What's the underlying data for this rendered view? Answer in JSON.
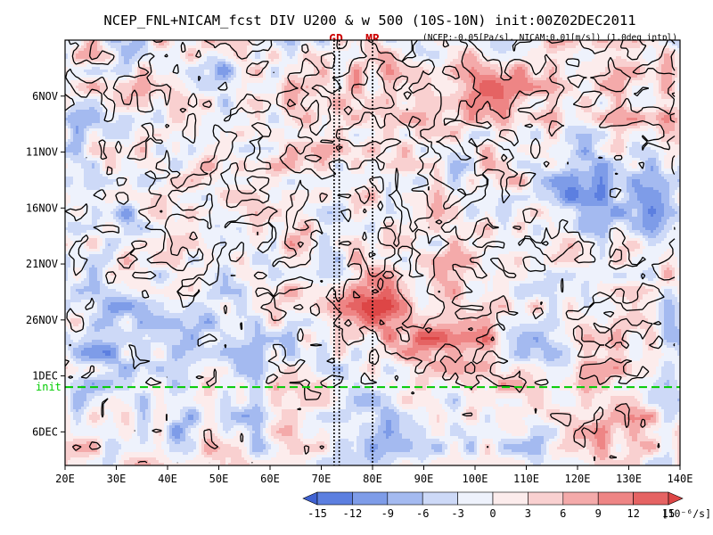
{
  "header": {
    "title": "NCEP_FNL+NICAM_fcst DIV U200 & w 500 (10S-10N) init:00Z02DEC2011",
    "subtitle": "(NCEP:-0.05[Pa/s], NICAM:0.01[m/s]) (1.0deg intpl)",
    "marker_gd": "GD",
    "marker_mr": "MR"
  },
  "colors": {
    "positive": "#e35a5a",
    "negative": "#4a72d9",
    "init_line": "#00cc00",
    "contour": "#000000",
    "marker_text": "#cc0000"
  },
  "chart_data": {
    "type": "heatmap",
    "title": "NCEP_FNL+NICAM_fcst DIV U200 & w 500 (10S-10N) init:00Z02DEC2011",
    "x_axis": {
      "range": [
        20,
        140
      ],
      "ticks": [
        20,
        30,
        40,
        50,
        60,
        70,
        80,
        90,
        100,
        110,
        120,
        130,
        140
      ],
      "tick_labels": [
        "20E",
        "30E",
        "40E",
        "50E",
        "60E",
        "70E",
        "80E",
        "90E",
        "100E",
        "110E",
        "120E",
        "130E",
        "140E"
      ]
    },
    "y_axis": {
      "start": "2011-11-01",
      "end": "2011-12-09",
      "ticks": [
        "2011-11-06",
        "2011-11-11",
        "2011-11-16",
        "2011-11-21",
        "2011-11-26",
        "2011-12-01"
      ],
      "tick_labels": [
        "6NOV",
        "11NOV",
        "16NOV",
        "21NOV",
        "26NOV",
        "1DEC",
        "6DEC"
      ],
      "extra_tick": "2011-12-06"
    },
    "init": {
      "label": "init",
      "date": "2011-12-02"
    },
    "markers": [
      {
        "label": "GD",
        "lon": [
          72.5,
          73.5
        ]
      },
      {
        "label": "MR",
        "lon": [
          80
        ]
      }
    ],
    "colorbar": {
      "levels": [
        -15,
        -12,
        -9,
        -6,
        -3,
        0,
        3,
        6,
        9,
        12,
        15
      ],
      "labels": [
        "-15",
        "-12",
        "-9",
        "-6",
        "-3",
        "0",
        "3",
        "6",
        "9",
        "12",
        "15"
      ],
      "unit": "[10⁻⁶/s]",
      "colors": [
        "#3f62d2",
        "#5c7fe0",
        "#7e9ce8",
        "#a4baf0",
        "#cdd9f7",
        "#eef2fc",
        "#fcecec",
        "#f9d0d0",
        "#f4aaaa",
        "#ee8585",
        "#e56363",
        "#dd4646"
      ]
    },
    "features": [
      {
        "kind": "pos",
        "lon": 103,
        "start": "2011-11-01",
        "end": "2011-11-09",
        "half_width": 8,
        "strength": 0.9
      },
      {
        "kind": "pos",
        "lon": 80,
        "start": "2011-11-20",
        "end": "2011-11-29",
        "half_width": 14,
        "strength": 1.0
      },
      {
        "kind": "pos",
        "lon": 95,
        "start": "2011-11-24",
        "end": "2011-12-02",
        "half_width": 10,
        "strength": 0.8
      },
      {
        "kind": "pos",
        "lon": 125,
        "start": "2011-11-26",
        "end": "2011-12-02",
        "half_width": 10,
        "strength": 0.7
      },
      {
        "kind": "pos",
        "lon": 130,
        "start": "2011-12-03",
        "end": "2011-12-08",
        "half_width": 8,
        "strength": 0.6
      },
      {
        "kind": "pos",
        "lon": 40,
        "start": "2011-11-03",
        "end": "2011-11-08",
        "half_width": 7,
        "strength": 0.6
      },
      {
        "kind": "neg",
        "lon": 50,
        "start": "2011-11-01",
        "end": "2011-11-05",
        "half_width": 6,
        "strength": 0.9
      },
      {
        "kind": "neg",
        "lon": 27,
        "start": "2011-11-20",
        "end": "2011-12-01",
        "half_width": 7,
        "strength": 0.8
      },
      {
        "kind": "neg",
        "lon": 48,
        "start": "2011-11-22",
        "end": "2011-11-30",
        "half_width": 6,
        "strength": 0.7
      },
      {
        "kind": "neg",
        "lon": 120,
        "start": "2011-11-10",
        "end": "2011-11-18",
        "half_width": 10,
        "strength": 0.7
      },
      {
        "kind": "neg",
        "lon": 135,
        "start": "2011-11-13",
        "end": "2011-11-21",
        "half_width": 5,
        "strength": 0.6
      },
      {
        "kind": "neg",
        "lon": 62,
        "start": "2011-11-14",
        "end": "2011-11-19",
        "half_width": 6,
        "strength": 0.6
      },
      {
        "kind": "neg",
        "lon": 115,
        "start": "2011-11-27",
        "end": "2011-12-01",
        "half_width": 6,
        "strength": 0.5
      },
      {
        "kind": "neg",
        "lon": 45,
        "start": "2011-12-03",
        "end": "2011-12-08",
        "half_width": 5,
        "strength": 0.6
      }
    ]
  }
}
